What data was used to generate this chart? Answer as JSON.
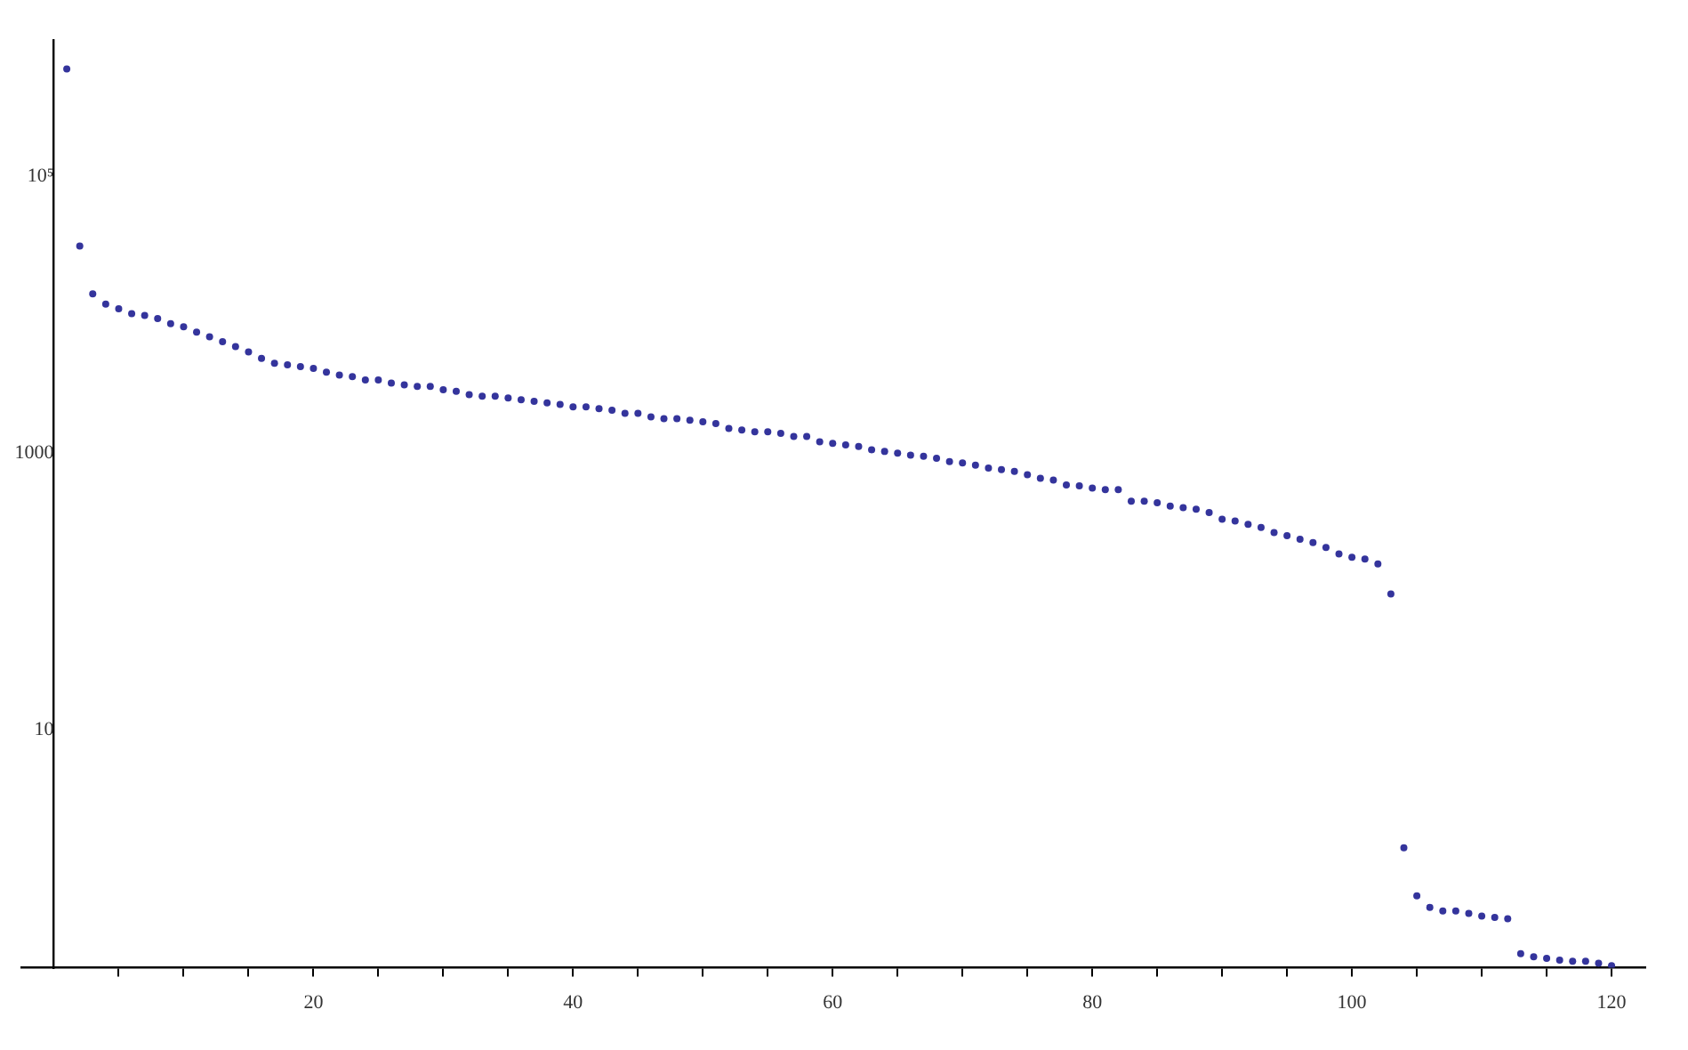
{
  "chart_data": {
    "type": "scatter",
    "log": "y",
    "marker": "circle",
    "grid": false,
    "legend": false,
    "x": [
      1,
      2,
      3,
      4,
      5,
      6,
      7,
      8,
      9,
      10,
      11,
      12,
      13,
      14,
      15,
      16,
      17,
      18,
      19,
      20,
      21,
      22,
      23,
      24,
      25,
      26,
      27,
      28,
      29,
      30,
      31,
      32,
      33,
      34,
      35,
      36,
      37,
      38,
      39,
      40,
      41,
      42,
      43,
      44,
      45,
      46,
      47,
      48,
      49,
      50,
      51,
      52,
      53,
      54,
      55,
      56,
      57,
      58,
      59,
      60,
      61,
      62,
      63,
      64,
      65,
      66,
      67,
      68,
      69,
      70,
      71,
      72,
      73,
      74,
      75,
      76,
      77,
      78,
      79,
      80,
      81,
      82,
      83,
      84,
      85,
      86,
      87,
      88,
      89,
      90,
      91,
      92,
      93,
      94,
      95,
      96,
      97,
      98,
      99,
      100,
      101,
      102,
      103,
      104,
      105,
      106,
      107,
      108,
      109,
      110,
      111,
      112,
      113,
      114,
      115,
      116,
      117,
      118,
      119,
      120
    ],
    "series": [
      {
        "color": "#34349c",
        "values": [
          600000,
          31500,
          14200,
          12000,
          11100,
          10200,
          9900,
          9400,
          8650,
          8200,
          7500,
          6950,
          6400,
          5900,
          5400,
          4850,
          4470,
          4350,
          4230,
          4110,
          3860,
          3680,
          3580,
          3390,
          3390,
          3210,
          3120,
          3040,
          3040,
          2880,
          2800,
          2650,
          2580,
          2580,
          2510,
          2440,
          2370,
          2310,
          2250,
          2160,
          2160,
          2100,
          2050,
          1940,
          1940,
          1830,
          1780,
          1780,
          1730,
          1690,
          1640,
          1510,
          1470,
          1430,
          1430,
          1390,
          1320,
          1320,
          1210,
          1180,
          1150,
          1120,
          1060,
          1030,
          1000,
          970,
          950,
          920,
          870,
          850,
          820,
          780,
          760,
          740,
          700,
          660,
          640,
          590,
          580,
          560,
          546,
          546,
          450,
          450,
          438,
          415,
          404,
          393,
          372,
          333,
          324,
          306,
          290,
          267,
          253,
          239,
          226,
          208,
          187,
          177,
          172,
          158,
          96,
          1.4,
          0.63,
          0.52,
          0.49,
          0.49,
          0.47,
          0.45,
          0.44,
          0.43,
          0.24,
          0.228,
          0.222,
          0.216,
          0.212,
          0.212,
          0.205,
          0.197
        ]
      }
    ],
    "xlim": [
      -2.5,
      122.6
    ],
    "xticks": [
      {
        "value": 5,
        "label": null
      },
      {
        "value": 10,
        "label": null
      },
      {
        "value": 15,
        "label": null
      },
      20,
      {
        "value": 25,
        "label": null
      },
      {
        "value": 30,
        "label": null
      },
      {
        "value": 35,
        "label": null
      },
      40,
      {
        "value": 45,
        "label": null
      },
      {
        "value": 50,
        "label": null
      },
      {
        "value": 55,
        "label": null
      },
      60,
      {
        "value": 65,
        "label": null
      },
      {
        "value": 70,
        "label": null
      },
      {
        "value": 75,
        "label": null
      },
      80,
      {
        "value": 85,
        "label": null
      },
      {
        "value": 90,
        "label": null
      },
      {
        "value": 95,
        "label": null
      },
      100,
      {
        "value": 105,
        "label": null
      },
      {
        "value": 110,
        "label": null
      },
      {
        "value": 115,
        "label": null
      },
      120
    ],
    "ylim": [
      0.19,
      970000
    ],
    "yticks": [
      10,
      1000,
      {
        "value": 100000,
        "label": "10⁵"
      }
    ]
  }
}
